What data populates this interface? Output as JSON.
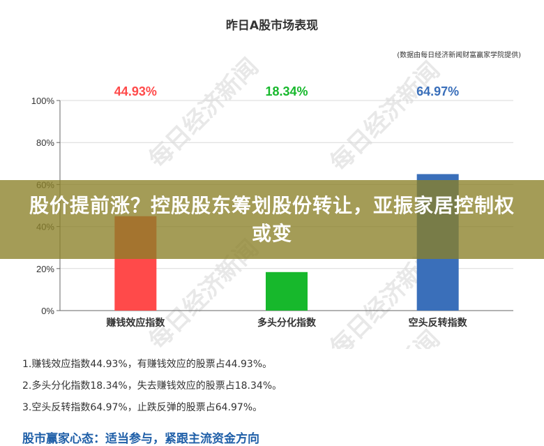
{
  "chart_data": {
    "type": "bar",
    "title": "昨日A股市场表现",
    "source_note": "(数据由每日经济新闻财富赢家学院提供)",
    "categories": [
      "赚钱效应指数",
      "多头分化指数",
      "空头反转指数"
    ],
    "values": [
      44.93,
      18.34,
      64.97
    ],
    "value_labels": [
      "44.93%",
      "18.34%",
      "64.97%"
    ],
    "colors": [
      "#ff4a4a",
      "#17b82c",
      "#3a6fba"
    ],
    "ylim": [
      0,
      100
    ],
    "yticks": [
      0,
      20,
      40,
      60,
      80,
      100
    ],
    "ytick_labels": [
      "0%",
      "20%",
      "40%",
      "60%",
      "80%",
      "100%"
    ],
    "grid": true,
    "watermark": "每日经济新闻"
  },
  "overlay": {
    "headline": "股价提前涨？控股股东筹划股份转让，亚振家居控制权或变"
  },
  "notes": [
    "1.赚钱效应指数44.93%，有赚钱效应的股票占44.93%。",
    "2.多头分化指数18.34%，失去赚钱效应的股票占18.34%。",
    "3.空头反转指数64.97%，止跌反弹的股票占64.97%。"
  ],
  "slogan": "股市赢家心态：适当参与，紧跟主流资金方向"
}
